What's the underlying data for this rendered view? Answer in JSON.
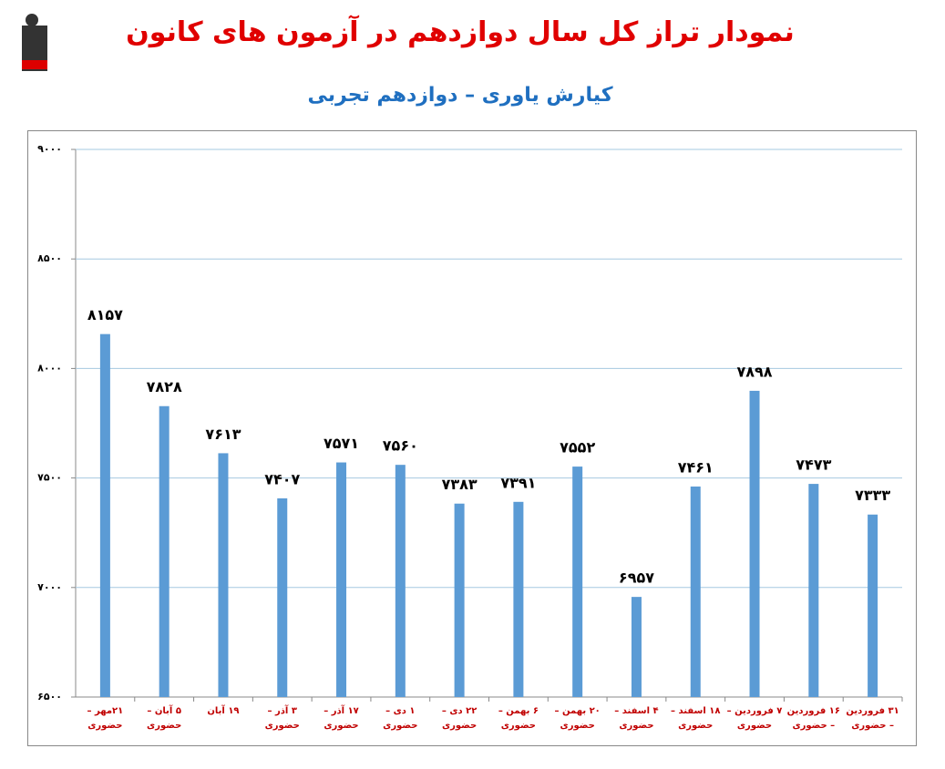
{
  "chart_data": {
    "type": "bar",
    "title": "نمودار تراز کل سال دوازدهم در آزمون های کانون",
    "subtitle": "کیارش یاوری – دوازدهم تجربی",
    "categories": [
      "۲۱مهر – حضوری",
      "۵ آبان – حضوری",
      "۱۹ آبان",
      "۳ آذر – حضوری",
      "۱۷ آذر – حضوری",
      "۱ دی – حضوری",
      "۲۲ دی – حضوری",
      "۶ بهمن – حضوری",
      "۲۰ بهمن – حضوری",
      "۴ اسفند – حضوری",
      "۱۸ اسفند – حضوری",
      "۷ فروردین – حضوری",
      "۱۶ فروردین – حضوری",
      "۳۱ فروردین – حضوری"
    ],
    "values": [
      8157,
      7828,
      7613,
      7407,
      7571,
      7560,
      7383,
      7391,
      7552,
      6957,
      7461,
      7898,
      7473,
      7333
    ],
    "value_labels": [
      "۸۱۵۷",
      "۷۸۲۸",
      "۷۶۱۳",
      "۷۴۰۷",
      "۷۵۷۱",
      "۷۵۶۰",
      "۷۳۸۳",
      "۷۳۹۱",
      "۷۵۵۲",
      "۶۹۵۷",
      "۷۴۶۱",
      "۷۸۹۸",
      "۷۴۷۳",
      "۷۳۳۳"
    ],
    "color": "#5b9bd5",
    "ylim": [
      6500,
      9000
    ],
    "yticks": [
      {
        "value": 6500,
        "label": "۶۵۰۰"
      },
      {
        "value": 7000,
        "label": "۷۰۰۰"
      },
      {
        "value": 7500,
        "label": "۷۵۰۰"
      },
      {
        "value": 8000,
        "label": "۸۰۰۰"
      },
      {
        "value": 8500,
        "label": "۸۵۰۰"
      },
      {
        "value": 9000,
        "label": "۹۰۰۰"
      }
    ],
    "grid": true
  }
}
